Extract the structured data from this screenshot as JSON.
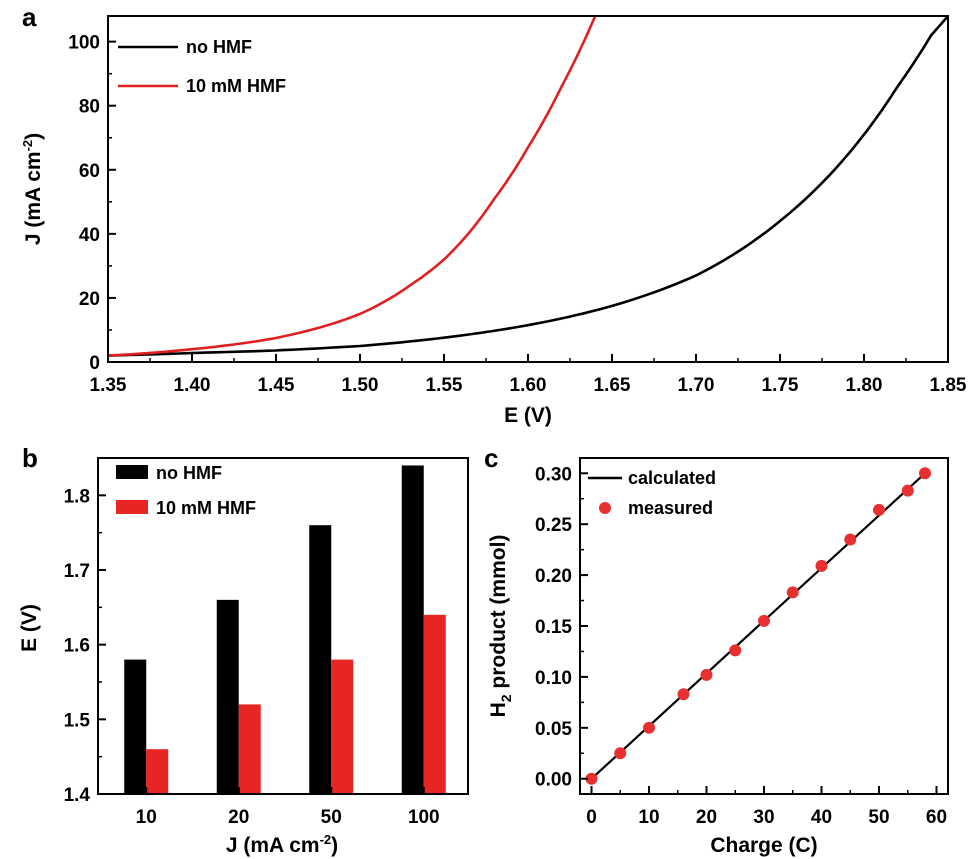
{
  "chart_data": [
    {
      "panel": "a",
      "type": "line",
      "xlabel": "E (V)",
      "ylabel": "J (mA cm",
      "ylabel_sup": "-2",
      "ylabel_end": ")",
      "xlim": [
        1.35,
        1.85
      ],
      "ylim": [
        0,
        108
      ],
      "xticks": [
        "1.35",
        "1.40",
        "1.45",
        "1.50",
        "1.55",
        "1.60",
        "1.65",
        "1.70",
        "1.75",
        "1.80",
        "1.85"
      ],
      "yticks": [
        "0",
        "20",
        "40",
        "60",
        "80",
        "100"
      ],
      "legend": "top-left",
      "series": [
        {
          "name": "no HMF",
          "color": "#000000",
          "x": [
            1.35,
            1.4,
            1.45,
            1.5,
            1.55,
            1.6,
            1.65,
            1.7,
            1.75,
            1.8,
            1.82,
            1.84,
            1.85
          ],
          "y": [
            2.0,
            2.8,
            3.6,
            5.0,
            7.6,
            11.5,
            17.5,
            27,
            44,
            71,
            86,
            102,
            108
          ]
        },
        {
          "name": "10 mM HMF",
          "color": "#e02020",
          "x": [
            1.35,
            1.4,
            1.45,
            1.5,
            1.53,
            1.55,
            1.58,
            1.6,
            1.62,
            1.64
          ],
          "y": [
            2.0,
            4.0,
            7.5,
            15,
            24,
            32,
            51,
            67,
            86,
            108
          ]
        }
      ]
    },
    {
      "panel": "b",
      "type": "bar",
      "xlabel": "J (mA cm",
      "xlabel_sup": "-2",
      "xlabel_end": ")",
      "ylabel": "E (V)",
      "ylim": [
        1.4,
        1.85
      ],
      "yticks": [
        "1.4",
        "1.5",
        "1.6",
        "1.7",
        "1.8"
      ],
      "categories": [
        "10",
        "20",
        "50",
        "100"
      ],
      "legend": "top-left",
      "series": [
        {
          "name": "no HMF",
          "color": "#000000",
          "values": [
            1.58,
            1.66,
            1.76,
            1.84
          ]
        },
        {
          "name": "10 mM HMF",
          "color": "#e82525",
          "values": [
            1.46,
            1.52,
            1.58,
            1.64
          ]
        }
      ]
    },
    {
      "panel": "c",
      "type": "scatter",
      "xlabel": "Charge (C)",
      "ylabel_pre": "H",
      "ylabel_sub": "2",
      "ylabel_post": " product (mmol)",
      "xlim": [
        -2,
        62
      ],
      "ylim": [
        -0.015,
        0.315
      ],
      "xticks": [
        "0",
        "10",
        "20",
        "30",
        "40",
        "50",
        "60"
      ],
      "yticks": [
        "0.00",
        "0.05",
        "0.10",
        "0.15",
        "0.20",
        "0.25",
        "0.30"
      ],
      "legend": "top-left",
      "series": [
        {
          "name": "calculated",
          "color": "#000000",
          "x": [
            0,
            58
          ],
          "y": [
            0,
            0.3
          ]
        },
        {
          "name": "measured",
          "color": "#e83030",
          "x": [
            0,
            5,
            10,
            16,
            20,
            25,
            30,
            35,
            40,
            45,
            50,
            55,
            58
          ],
          "y": [
            0.0,
            0.025,
            0.05,
            0.083,
            0.102,
            0.126,
            0.155,
            0.183,
            0.209,
            0.235,
            0.264,
            0.283,
            0.3
          ]
        }
      ]
    }
  ]
}
